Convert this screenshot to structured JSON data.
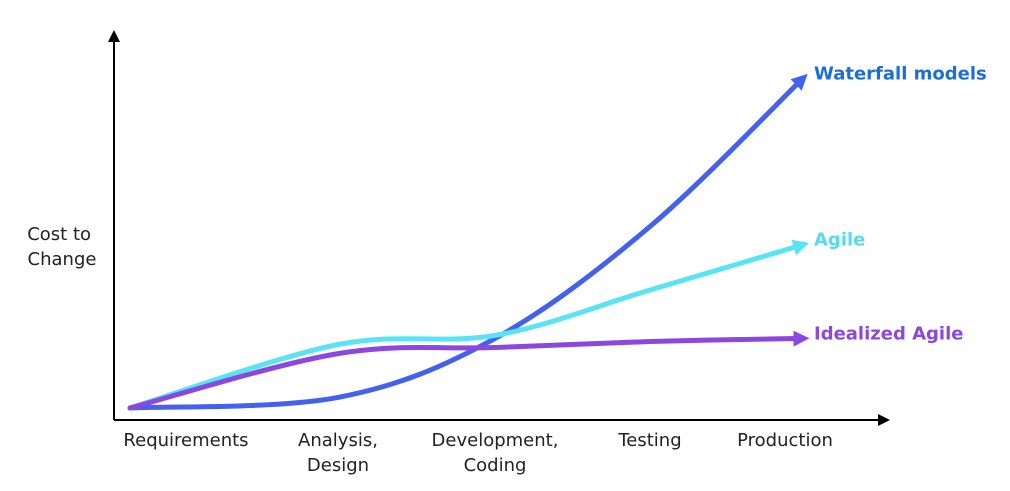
{
  "chart_data": {
    "type": "line",
    "title": "",
    "xlabel": "",
    "ylabel": [
      "Cost to",
      "Change"
    ],
    "categories": [
      [
        "Requirements"
      ],
      [
        "Analysis,",
        "Design"
      ],
      [
        "Development,",
        "Coding"
      ],
      [
        "Testing"
      ],
      [
        "Production"
      ]
    ],
    "ylim": [
      0,
      10
    ],
    "grid": false,
    "legend": "inline-right",
    "series": [
      {
        "name": "Waterfall models",
        "color": "#4361ee",
        "label_color": "#1a6fd6",
        "values": [
          0,
          0.35,
          2.3,
          6.0,
          10.9
        ]
      },
      {
        "name": "Agile",
        "color": "#5ae3f2",
        "label_color": "#56dbec",
        "values": [
          0,
          2.1,
          2.4,
          3.9,
          5.4
        ]
      },
      {
        "name": "Idealized Agile",
        "color": "#8b47e0",
        "label_color": "#8b47e0",
        "values": [
          0,
          1.8,
          2.0,
          2.2,
          2.3
        ]
      }
    ]
  }
}
